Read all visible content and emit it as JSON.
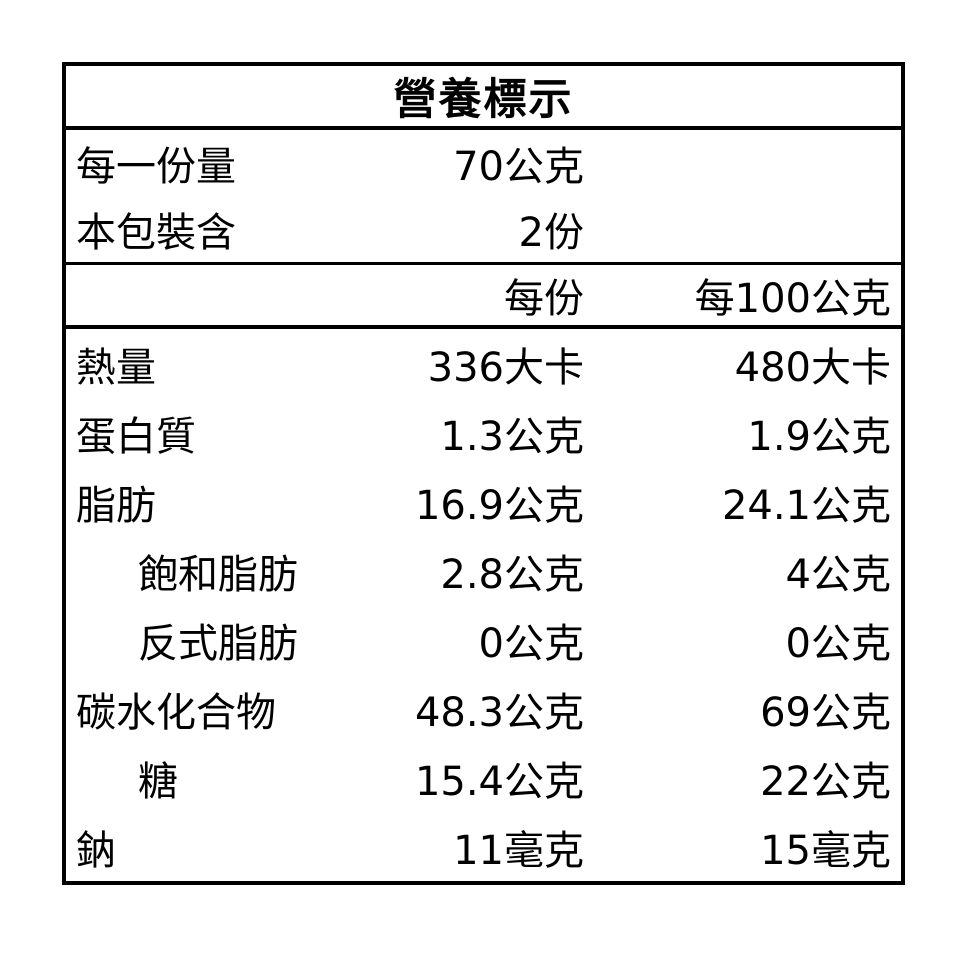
{
  "title": "營養標示",
  "serving_info": [
    {
      "label": "每一份量",
      "value": "70公克"
    },
    {
      "label": "本包裝含",
      "value": "2份"
    }
  ],
  "column_headers": {
    "per_serving": "每份",
    "per_100g": "每100公克"
  },
  "nutrients": [
    {
      "label": "熱量",
      "per_serving": "336大卡",
      "per_100g": "480大卡"
    },
    {
      "label": "蛋白質",
      "per_serving": "1.3公克",
      "per_100g": "1.9公克"
    },
    {
      "label": "脂肪",
      "per_serving": "16.9公克",
      "per_100g": "24.1公克"
    },
    {
      "label": "飽和脂肪",
      "per_serving": "2.8公克",
      "per_100g": "4公克"
    },
    {
      "label": "反式脂肪",
      "per_serving": "0公克",
      "per_100g": "0公克"
    },
    {
      "label": "碳水化合物",
      "per_serving": "48.3公克",
      "per_100g": "69公克"
    },
    {
      "label": "糖",
      "per_serving": "15.4公克",
      "per_100g": "22公克"
    },
    {
      "label": "鈉",
      "per_serving": "11毫克",
      "per_100g": "15毫克"
    }
  ],
  "colors": {
    "border": "#000000",
    "text": "#000000",
    "background": "#ffffff"
  }
}
